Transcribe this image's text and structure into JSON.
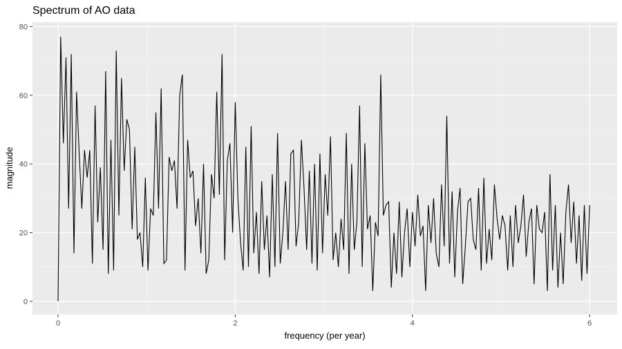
{
  "chart_data": {
    "type": "line",
    "title": "Spectrum of AO data",
    "xlabel": "frequency (per year)",
    "ylabel": "magnitude",
    "xlim": [
      -0.3,
      6.3
    ],
    "ylim": [
      -4,
      81
    ],
    "x_ticks": [
      "0",
      "2",
      "4",
      "6"
    ],
    "y_ticks": [
      "0",
      "20",
      "40",
      "60",
      "80"
    ],
    "grid": true,
    "panel_background": "#ebebeb",
    "line_color": "#000000",
    "x": {
      "from": 0,
      "to": 6,
      "spacing": "even"
    },
    "values": [
      0,
      77,
      46,
      71,
      27,
      72,
      14,
      61,
      43,
      27,
      44,
      36,
      44,
      11,
      57,
      23,
      39,
      15,
      67,
      8,
      47,
      9,
      73,
      25,
      65,
      38,
      53,
      50,
      21,
      45,
      18,
      20,
      10,
      36,
      9,
      27,
      25,
      55,
      27,
      62,
      11,
      12,
      42,
      38,
      41,
      27,
      60,
      66,
      9,
      47,
      36,
      38,
      22,
      30,
      14,
      40,
      8,
      12,
      37,
      30,
      61,
      31,
      72,
      12,
      41,
      46,
      20,
      58,
      30,
      17,
      9,
      45,
      10,
      51,
      14,
      26,
      8,
      35,
      15,
      25,
      7,
      37,
      10,
      49,
      11,
      20,
      35,
      15,
      43,
      44,
      16,
      23,
      47,
      33,
      15,
      38,
      11,
      40,
      9,
      43,
      14,
      37,
      25,
      48,
      12,
      20,
      10,
      24,
      15,
      49,
      8,
      40,
      15,
      23,
      57,
      10,
      46,
      21,
      25,
      3,
      23,
      19,
      66,
      25,
      28,
      29,
      4,
      20,
      8,
      29,
      7,
      20,
      27,
      10,
      26,
      16,
      31,
      19,
      22,
      3,
      28,
      17,
      30,
      14,
      10,
      34,
      16,
      54,
      11,
      32,
      7,
      26,
      33,
      5,
      16,
      29,
      30,
      18,
      15,
      33,
      9,
      36,
      11,
      21,
      12,
      34,
      24,
      18,
      25,
      22,
      9,
      25,
      10,
      28,
      17,
      22,
      31,
      13,
      23,
      27,
      5,
      28,
      21,
      20,
      26,
      3,
      37,
      9,
      28,
      4,
      20,
      5,
      26,
      34,
      17,
      29,
      11,
      25,
      6,
      28,
      8,
      28
    ]
  }
}
